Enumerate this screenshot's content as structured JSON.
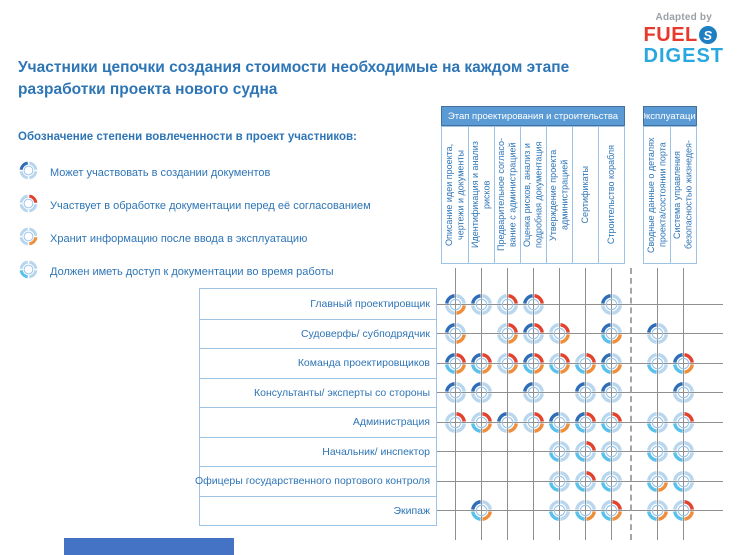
{
  "logo": {
    "adapted_by": "Adapted by",
    "fuel": "FUEL",
    "digest": "DIGEST"
  },
  "title": {
    "line1": "Участники цепочки создания стоимости необходимые на каждом этапе",
    "line2": "разработки проекта нового судна"
  },
  "legend": {
    "heading": "Обозначение степени вовлеченности в проект участников:",
    "items": [
      {
        "quadrant": "nw",
        "label": "Может участвовать в создании документов"
      },
      {
        "quadrant": "ne",
        "label": "Участвует в обработке документации перед её согласованием"
      },
      {
        "quadrant": "se",
        "label": "Хранит информацию после ввода в эксплуатацию"
      },
      {
        "quadrant": "sw",
        "label": "Должен иметь доступ к документации во время работы"
      }
    ]
  },
  "colors": {
    "nw": "#2f6db7",
    "ne": "#e2422e",
    "se": "#ef8e3b",
    "sw": "#5ac1ec",
    "inactive": "#b8d6ed",
    "inner_ring": "#9cc5e8",
    "accent": "#2e75b6",
    "band": "#5b9bd5",
    "grid": "#8f8f8f",
    "box_border": "#9dc3e6",
    "footer": "#4472c4"
  },
  "chart_data": {
    "type": "matrix",
    "column_groups": [
      {
        "label": "Этап проектирования и строительства",
        "columns": [
          0,
          6
        ]
      },
      {
        "label": "Эксплуатация",
        "columns": [
          7,
          8
        ]
      }
    ],
    "columns": [
      "Описание идеи проекта, чертежи и документы",
      "Идентификация и анализ рисков",
      "Предварительное согласо- вание с администрацией",
      "Оценка рисков, анализ и подробная документация",
      "Утверждение проекта администрацией",
      "Сертификаты",
      "Строительство корабля",
      "Сводные данные о деталях проекта/состоянии порта",
      "Система управления безопасностью жизнедея-"
    ],
    "rows": [
      {
        "label": "Главный проектировщик",
        "cells": [
          [
            "nw",
            "se"
          ],
          [
            "nw"
          ],
          [
            "ne"
          ],
          [
            "nw",
            "ne"
          ],
          null,
          null,
          [
            "nw"
          ],
          null,
          null
        ]
      },
      {
        "label": "Судоверфь/ субподрядчик",
        "cells": [
          [
            "nw",
            "se"
          ],
          null,
          [
            "ne",
            "se"
          ],
          [
            "nw",
            "ne"
          ],
          [
            "ne",
            "se"
          ],
          null,
          [
            "nw",
            "se",
            "sw"
          ],
          [
            "nw"
          ],
          null
        ]
      },
      {
        "label": "Команда проектировщиков",
        "cells": [
          [
            "nw",
            "ne",
            "se",
            "sw"
          ],
          [
            "nw",
            "ne",
            "se",
            "sw"
          ],
          [
            "ne",
            "se"
          ],
          [
            "nw",
            "ne",
            "se",
            "sw"
          ],
          [
            "ne",
            "se",
            "sw"
          ],
          [
            "ne",
            "se",
            "sw"
          ],
          [
            "nw",
            "se",
            "sw"
          ],
          [
            "sw"
          ],
          [
            "nw",
            "ne",
            "se",
            "sw"
          ]
        ]
      },
      {
        "label": "Консультанты/ эксперты со стороны",
        "cells": [
          [
            "nw"
          ],
          [
            "nw"
          ],
          null,
          [
            "nw"
          ],
          null,
          [
            "nw"
          ],
          [
            "nw"
          ],
          null,
          [
            "nw"
          ]
        ]
      },
      {
        "label": "Администрация",
        "cells": [
          [
            "ne"
          ],
          [
            "ne",
            "se",
            "sw"
          ],
          [
            "nw",
            "se"
          ],
          [
            "ne",
            "se"
          ],
          [
            "nw",
            "se",
            "sw"
          ],
          [
            "nw",
            "ne",
            "sw"
          ],
          [
            "ne",
            "sw"
          ],
          [
            "sw"
          ],
          [
            "ne",
            "sw"
          ]
        ]
      },
      {
        "label": "Начальник/ инспектор",
        "cells": [
          null,
          null,
          null,
          null,
          [
            "sw"
          ],
          [
            "ne",
            "sw"
          ],
          [
            "sw"
          ],
          [
            "sw"
          ],
          [
            "sw"
          ]
        ]
      },
      {
        "label": "Офицеры государственного портового контроля",
        "cells": [
          null,
          null,
          null,
          null,
          [
            "sw"
          ],
          [
            "ne",
            "sw"
          ],
          [
            "sw"
          ],
          [
            "se",
            "sw"
          ],
          [
            "sw"
          ]
        ]
      },
      {
        "label": "Экипаж",
        "cells": [
          null,
          [
            "nw",
            "se",
            "sw"
          ],
          null,
          null,
          [
            "sw"
          ],
          [
            "se",
            "sw"
          ],
          [
            "ne",
            "se",
            "sw"
          ],
          [
            "se",
            "sw"
          ],
          [
            "ne",
            "se",
            "sw"
          ]
        ]
      }
    ]
  }
}
